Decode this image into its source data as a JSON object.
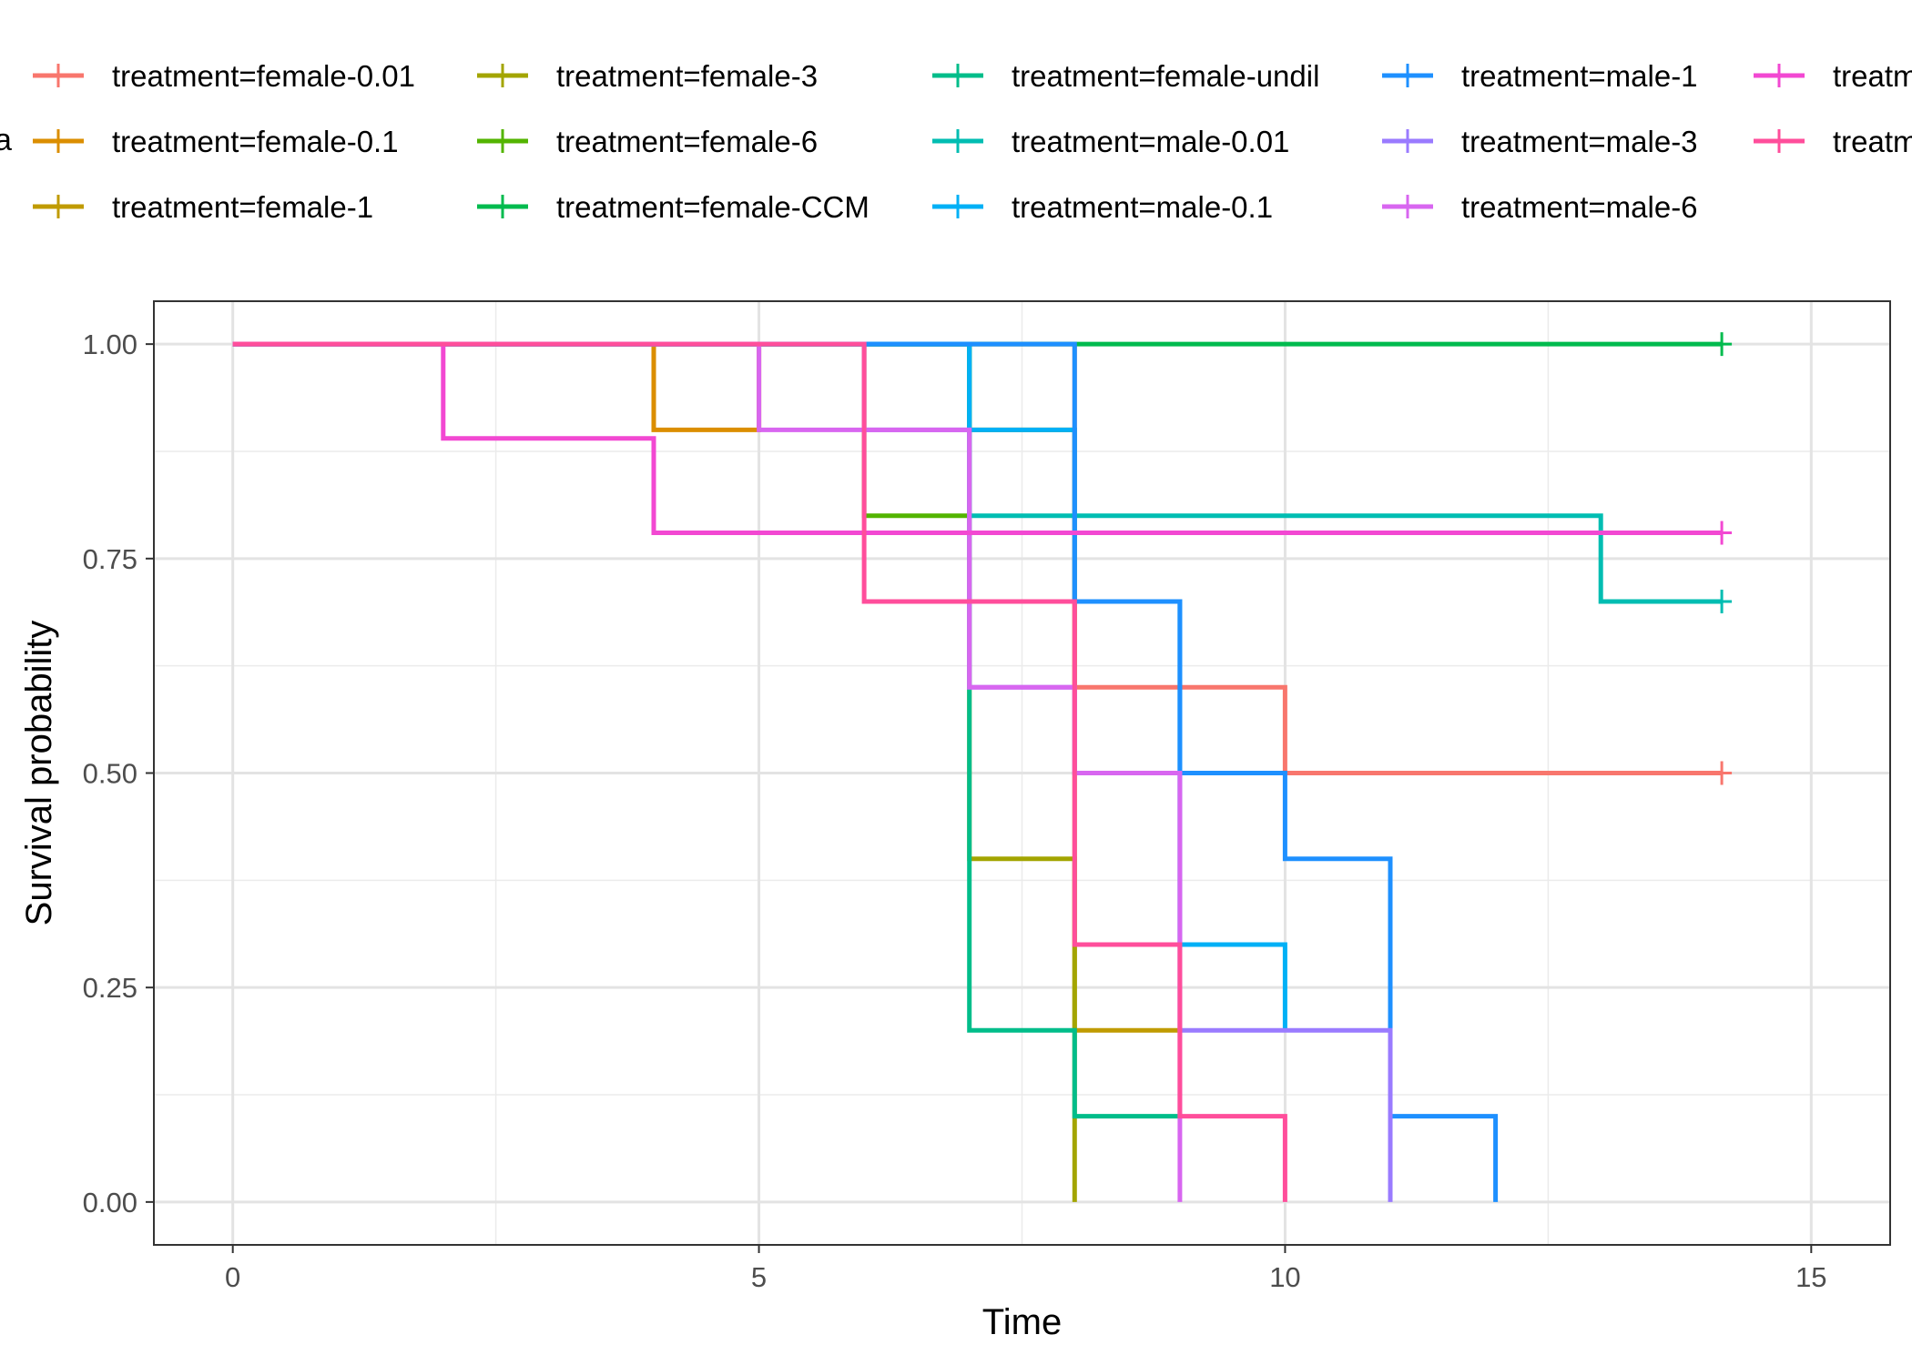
{
  "chart_data": {
    "type": "line",
    "title": "",
    "xlabel": "Time",
    "ylabel": "Survival probability",
    "xlim": [
      -0.75,
      15.75
    ],
    "ylim": [
      -0.05,
      1.05
    ],
    "x_ticks": [
      0,
      5,
      10,
      15
    ],
    "x_tick_labels": [
      "0",
      "5",
      "10",
      "15"
    ],
    "y_ticks": [
      0,
      0.25,
      0.5,
      0.75,
      1
    ],
    "y_tick_labels": [
      "0.00",
      "0.25",
      "0.50",
      "0.75",
      "1.00"
    ],
    "grid": true,
    "legend_position": "top",
    "legend_title_fragment": "a",
    "series": [
      {
        "name": "treatment=female-0.01",
        "color": "#F8766D",
        "points": [
          [
            0,
            1
          ],
          [
            8,
            1
          ],
          [
            8,
            0.6
          ],
          [
            10,
            0.6
          ],
          [
            10,
            0.5
          ],
          [
            14.15,
            0.5
          ]
        ],
        "censor_x": [
          14.15
        ],
        "censor_y": [
          0.5
        ]
      },
      {
        "name": "treatment=female-0.1",
        "color": "#DB8E00",
        "points": [
          [
            0,
            1
          ],
          [
            4,
            1
          ],
          [
            4,
            0.9
          ],
          [
            5,
            0.9
          ],
          [
            5,
            1
          ]
        ],
        "censor_x": [],
        "censor_y": []
      },
      {
        "name": "treatment=female-1",
        "color": "#C09B00",
        "points": [
          [
            0,
            1
          ],
          [
            7,
            1
          ],
          [
            7,
            0.9
          ],
          [
            8,
            0.9
          ],
          [
            8,
            0.2
          ],
          [
            9,
            0.2
          ]
        ],
        "censor_x": [],
        "censor_y": []
      },
      {
        "name": "treatment=female-3",
        "color": "#A3A500",
        "points": [
          [
            0,
            1
          ],
          [
            7,
            1
          ],
          [
            7,
            0.4
          ],
          [
            8,
            0.4
          ],
          [
            8,
            0
          ]
        ],
        "censor_x": [],
        "censor_y": []
      },
      {
        "name": "treatment=female-6",
        "color": "#53B400",
        "points": [
          [
            0,
            1
          ],
          [
            6,
            1
          ],
          [
            6,
            0.8
          ],
          [
            7,
            0.8
          ]
        ],
        "censor_x": [],
        "censor_y": []
      },
      {
        "name": "treatment=female-CCM",
        "color": "#00BB4E",
        "points": [
          [
            0,
            1
          ],
          [
            14.15,
            1
          ]
        ],
        "censor_x": [
          14.15
        ],
        "censor_y": [
          1
        ]
      },
      {
        "name": "treatment=female-undil",
        "color": "#00BD8A",
        "points": [
          [
            0,
            1
          ],
          [
            7,
            1
          ],
          [
            7,
            0.2
          ],
          [
            8,
            0.2
          ],
          [
            8,
            0.1
          ],
          [
            9,
            0.1
          ]
        ],
        "censor_x": [],
        "censor_y": []
      },
      {
        "name": "treatment=male-0.01",
        "color": "#00BDB2",
        "points": [
          [
            0,
            1
          ],
          [
            7,
            1
          ],
          [
            7,
            0.8
          ],
          [
            13,
            0.8
          ],
          [
            13,
            0.7
          ],
          [
            14.15,
            0.7
          ]
        ],
        "censor_x": [
          14.15
        ],
        "censor_y": [
          0.7
        ]
      },
      {
        "name": "treatment=male-0.1",
        "color": "#00B0F6",
        "points": [
          [
            0,
            1
          ],
          [
            7,
            1
          ],
          [
            7,
            0.9
          ],
          [
            8,
            0.9
          ],
          [
            8,
            0.7
          ],
          [
            9,
            0.7
          ],
          [
            9,
            0.3
          ],
          [
            10,
            0.3
          ],
          [
            10,
            0.2
          ]
        ],
        "censor_x": [],
        "censor_y": []
      },
      {
        "name": "treatment=male-1",
        "color": "#1E90FF",
        "points": [
          [
            0,
            1
          ],
          [
            8,
            1
          ],
          [
            8,
            0.9
          ],
          [
            8,
            0.7
          ],
          [
            9,
            0.7
          ],
          [
            9,
            0.5
          ],
          [
            10,
            0.5
          ],
          [
            10,
            0.4
          ],
          [
            11,
            0.4
          ],
          [
            11,
            0.1
          ],
          [
            12,
            0.1
          ],
          [
            12,
            0
          ]
        ],
        "censor_x": [],
        "censor_y": []
      },
      {
        "name": "treatment=male-3",
        "color": "#9A7BFF",
        "points": [
          [
            0,
            1
          ],
          [
            6,
            1
          ],
          [
            6,
            0.9
          ],
          [
            7,
            0.9
          ],
          [
            7,
            0.6
          ],
          [
            8,
            0.6
          ],
          [
            8,
            0.5
          ],
          [
            9,
            0.5
          ],
          [
            9,
            0.2
          ],
          [
            11,
            0.2
          ],
          [
            11,
            0
          ]
        ],
        "censor_x": [],
        "censor_y": []
      },
      {
        "name": "treatment=male-6",
        "color": "#D866F0",
        "points": [
          [
            0,
            1
          ],
          [
            5,
            1
          ],
          [
            5,
            0.9
          ],
          [
            7,
            0.9
          ],
          [
            7,
            0.6
          ],
          [
            8,
            0.6
          ],
          [
            8,
            0.5
          ],
          [
            9,
            0.5
          ],
          [
            9,
            0
          ]
        ],
        "censor_x": [],
        "censor_y": []
      },
      {
        "name": "treatm",
        "color": "#F248D2",
        "points": [
          [
            0,
            1
          ],
          [
            2,
            1
          ],
          [
            2,
            0.89
          ],
          [
            4,
            0.89
          ],
          [
            4,
            0.78
          ],
          [
            14.15,
            0.78
          ]
        ],
        "censor_x": [
          14.15
        ],
        "censor_y": [
          0.78
        ]
      },
      {
        "name": "treatm",
        "color": "#FF4E9B",
        "points": [
          [
            0,
            1
          ],
          [
            6,
            1
          ],
          [
            6,
            0.7
          ],
          [
            8,
            0.7
          ],
          [
            8,
            0.3
          ],
          [
            9,
            0.3
          ],
          [
            9,
            0.1
          ],
          [
            10,
            0.1
          ],
          [
            10,
            0
          ]
        ],
        "censor_x": [],
        "censor_y": []
      }
    ]
  }
}
